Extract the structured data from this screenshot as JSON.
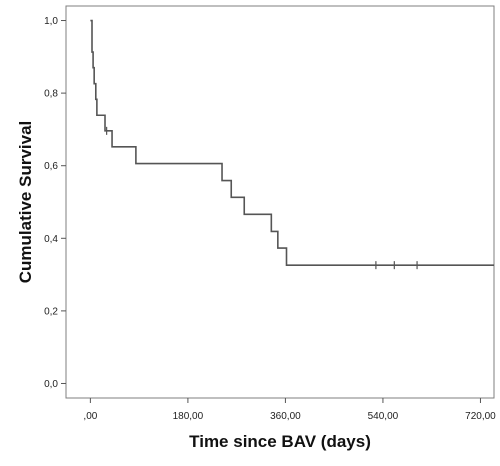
{
  "chart_data": {
    "type": "line",
    "title": "",
    "xlabel": "Time since BAV (days)",
    "ylabel": "Cumulative Survival",
    "xlim": [
      -45,
      745
    ],
    "ylim": [
      -0.04,
      1.04
    ],
    "x_ticks": [
      {
        "value": 0,
        "label": ",00"
      },
      {
        "value": 180,
        "label": "180,00"
      },
      {
        "value": 360,
        "label": "360,00"
      },
      {
        "value": 540,
        "label": "540,00"
      },
      {
        "value": 720,
        "label": "720,00"
      }
    ],
    "y_ticks": [
      {
        "value": 0.0,
        "label": "0,0"
      },
      {
        "value": 0.2,
        "label": "0,2"
      },
      {
        "value": 0.4,
        "label": "0,4"
      },
      {
        "value": 0.6,
        "label": "0,6"
      },
      {
        "value": 0.8,
        "label": "0,8"
      },
      {
        "value": 1.0,
        "label": "1,0"
      }
    ],
    "grid": false,
    "series": [
      {
        "style": "step",
        "color": "#555555",
        "steps": [
          {
            "x": 0,
            "y": 1.0
          },
          {
            "x": 3,
            "y": 0.913
          },
          {
            "x": 5,
            "y": 0.87
          },
          {
            "x": 7,
            "y": 0.826
          },
          {
            "x": 10,
            "y": 0.783
          },
          {
            "x": 12,
            "y": 0.739
          },
          {
            "x": 27,
            "y": 0.696
          },
          {
            "x": 40,
            "y": 0.652
          },
          {
            "x": 84,
            "y": 0.606
          },
          {
            "x": 243,
            "y": 0.559
          },
          {
            "x": 260,
            "y": 0.513
          },
          {
            "x": 284,
            "y": 0.466
          },
          {
            "x": 334,
            "y": 0.419
          },
          {
            "x": 346,
            "y": 0.373
          },
          {
            "x": 362,
            "y": 0.326
          },
          {
            "x": 745,
            "y": 0.326
          }
        ],
        "censored": [
          {
            "x": 30,
            "y": 0.696
          },
          {
            "x": 527,
            "y": 0.326
          },
          {
            "x": 561,
            "y": 0.326
          },
          {
            "x": 603,
            "y": 0.326
          }
        ]
      }
    ]
  }
}
